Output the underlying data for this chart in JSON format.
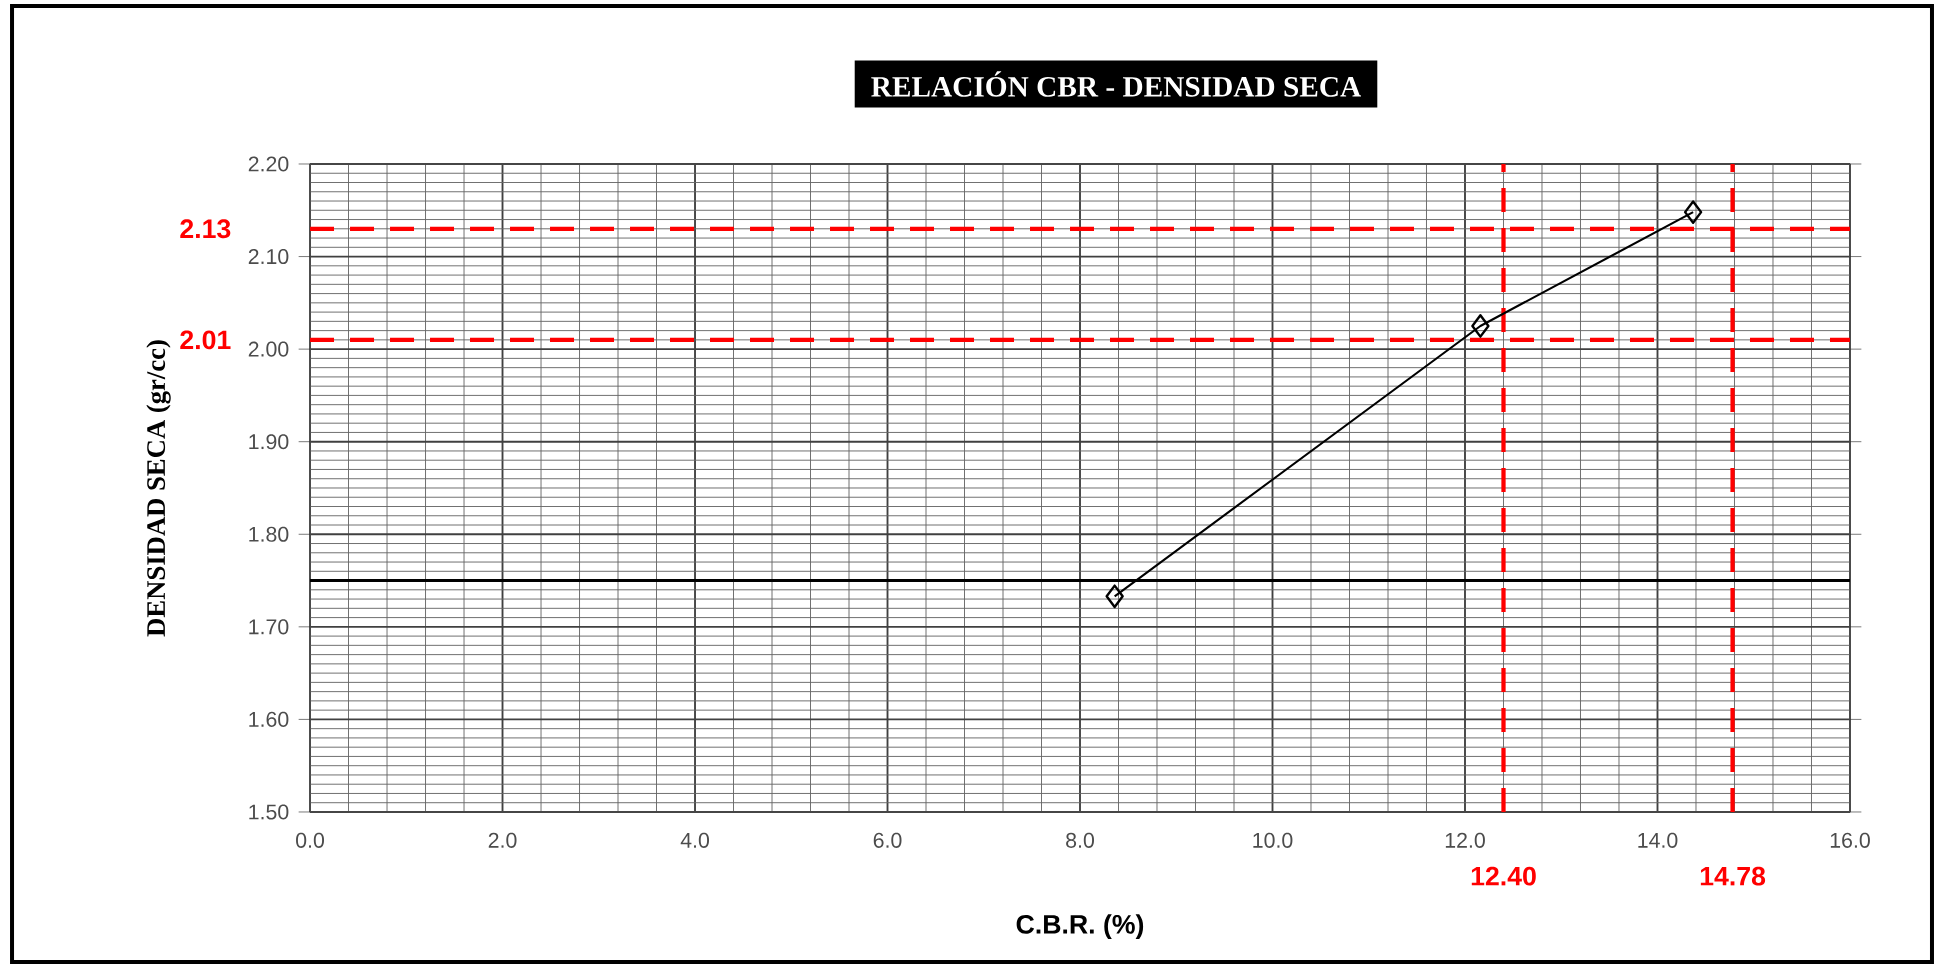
{
  "chart_data": {
    "type": "line",
    "title": "RELACIÓN CBR - DENSIDAD SECA",
    "xlabel": "C.B.R. (%)",
    "ylabel": "DENSIDAD SECA (gr/cc)",
    "x": [
      8.36,
      12.16,
      14.37
    ],
    "series": [
      {
        "color": "#000000",
        "values": [
          1.733,
          2.025,
          2.148
        ]
      }
    ],
    "marker": "diamond",
    "line_style": "solid",
    "grid": true,
    "xlim": [
      0,
      16
    ],
    "ylim": [
      1.5,
      2.2
    ],
    "xticks": [
      {
        "value": 0,
        "label": "0.0"
      },
      {
        "value": 2,
        "label": "2.0"
      },
      {
        "value": 4,
        "label": "4.0"
      },
      {
        "value": 6,
        "label": "6.0"
      },
      {
        "value": 8,
        "label": "8.0"
      },
      {
        "value": 10,
        "label": "10.0"
      },
      {
        "value": 12,
        "label": "12.0"
      },
      {
        "value": 14,
        "label": "14.0"
      },
      {
        "value": 16,
        "label": "16.0"
      }
    ],
    "yticks": [
      {
        "value": 1.5,
        "label": "1.50"
      },
      {
        "value": 1.6,
        "label": "1.60"
      },
      {
        "value": 1.7,
        "label": "1.70"
      },
      {
        "value": 1.8,
        "label": "1.80"
      },
      {
        "value": 1.9,
        "label": "1.90"
      },
      {
        "value": 2.0,
        "label": "2.00"
      },
      {
        "value": 2.1,
        "label": "2.10"
      },
      {
        "value": 2.2,
        "label": "2.20"
      }
    ],
    "ref_lines": [
      {
        "axis": "y",
        "value": 2.13,
        "label": "2.13",
        "color": "#ff0000",
        "line_style": "dashed"
      },
      {
        "axis": "y",
        "value": 2.01,
        "label": "2.01",
        "color": "#ff0000",
        "line_style": "dashed"
      },
      {
        "axis": "x",
        "value": 12.4,
        "label": "12.40",
        "color": "#ff0000",
        "line_style": "dashed"
      },
      {
        "axis": "x",
        "value": 14.78,
        "label": "14.78",
        "color": "#ff0000",
        "line_style": "dashed"
      },
      {
        "axis": "y",
        "value": 1.75,
        "color": "#000000",
        "line_style": "solid"
      }
    ]
  }
}
